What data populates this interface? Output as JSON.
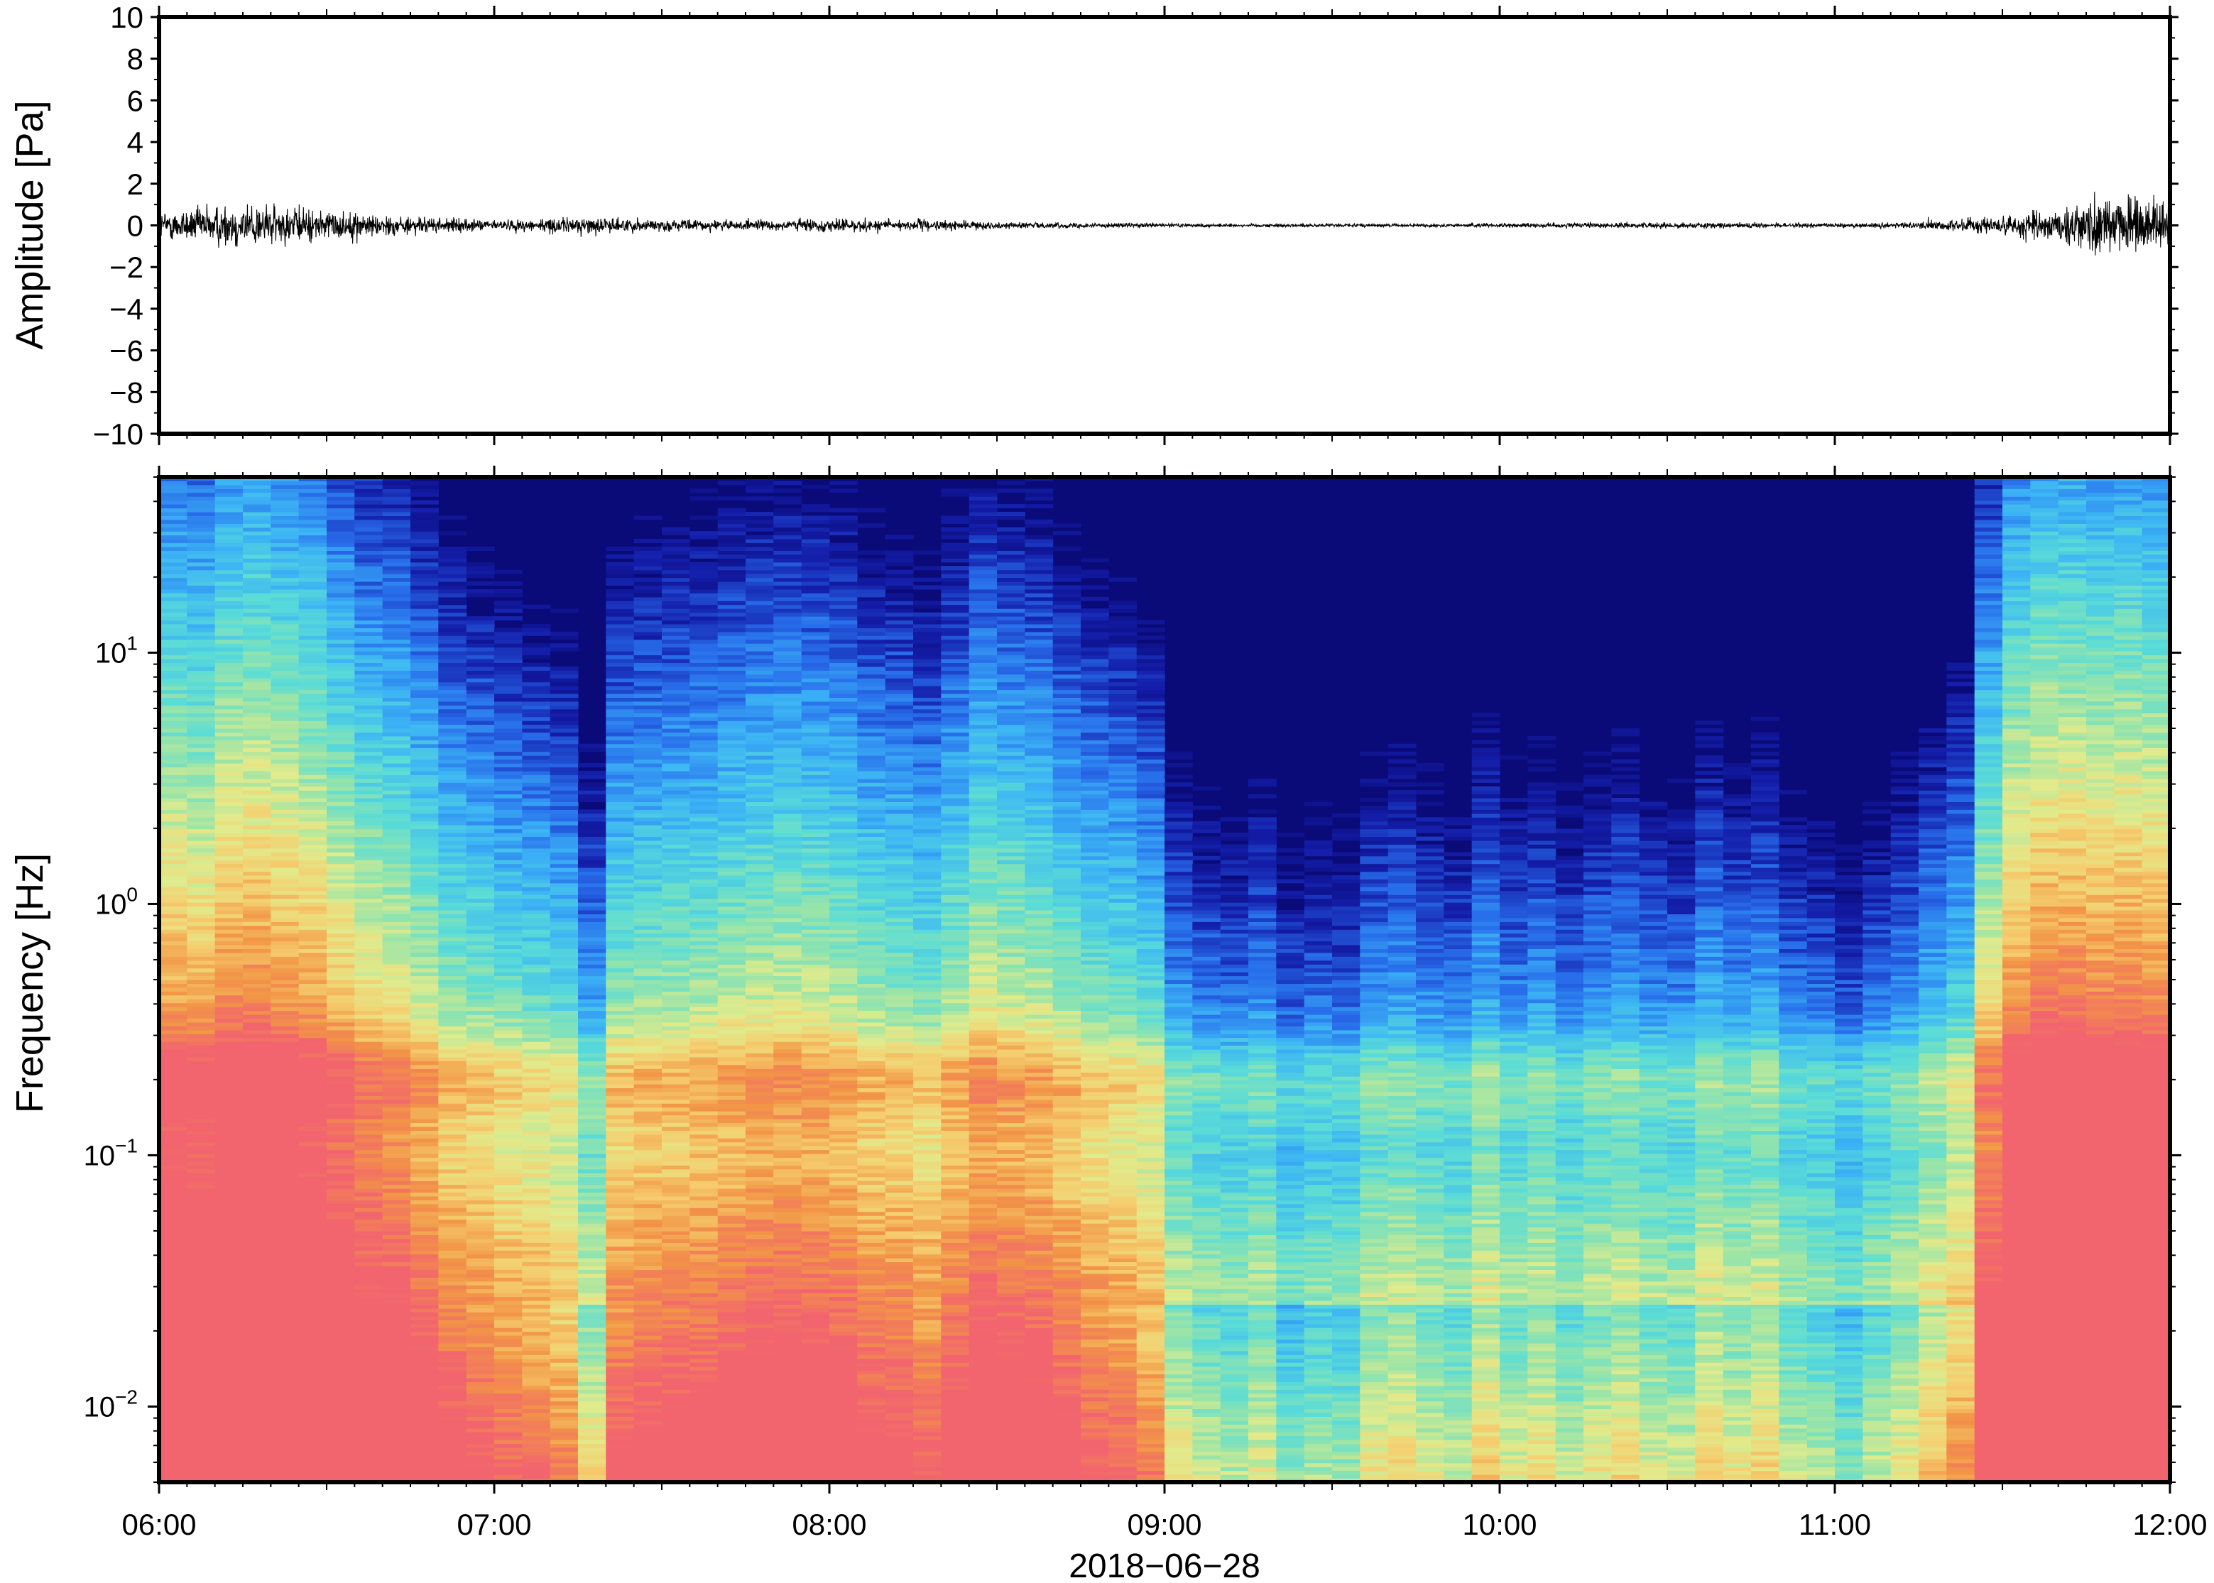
{
  "chart_data": [
    {
      "type": "line",
      "title": "",
      "xlabel": "",
      "ylabel": "Amplitude [Pa]",
      "ylim": [
        -10,
        10
      ],
      "yticks": [
        10,
        8,
        6,
        4,
        2,
        0,
        -2,
        -4,
        -6,
        -8,
        -10
      ],
      "ytick_labels": [
        "10",
        "8",
        "6",
        "4",
        "2",
        "0",
        "−2",
        "−4",
        "−6",
        "−8",
        "−10"
      ],
      "xlim": [
        "06:00",
        "12:00"
      ],
      "grid": false,
      "series": [
        {
          "color": "#000000",
          "x": [
            "06:00",
            "06:15",
            "06:30",
            "06:45",
            "07:00",
            "07:15",
            "07:30",
            "07:45",
            "08:00",
            "08:15",
            "08:30",
            "08:45",
            "09:00",
            "09:15",
            "09:30",
            "09:45",
            "10:00",
            "10:15",
            "10:30",
            "10:45",
            "11:00",
            "11:15",
            "11:30",
            "11:45",
            "12:00"
          ],
          "envelope": [
            0.8,
            1.4,
            0.9,
            0.5,
            0.3,
            0.5,
            0.35,
            0.3,
            0.4,
            0.35,
            0.2,
            0.15,
            0.12,
            0.1,
            0.1,
            0.1,
            0.12,
            0.15,
            0.18,
            0.15,
            0.12,
            0.2,
            0.6,
            1.5,
            1.8
          ],
          "peak_max": 2.4,
          "peak_min": -2.5
        }
      ]
    },
    {
      "type": "heatmap",
      "title": "",
      "xlabel": "2018−06−28",
      "ylabel": "Frequency [Hz]",
      "yscale": "log",
      "ylim": [
        0.005,
        50
      ],
      "ytick_labels": [
        {
          "base": "10",
          "exp": "1",
          "value": 10
        },
        {
          "base": "10",
          "exp": "0",
          "value": 1
        },
        {
          "base": "10",
          "exp": "−1",
          "value": 0.1
        },
        {
          "base": "10",
          "exp": "−2",
          "value": 0.01
        }
      ],
      "xticks": [
        "06:00",
        "07:00",
        "08:00",
        "09:00",
        "10:00",
        "11:00",
        "12:00"
      ],
      "colormap": "rainbow (dark blue = low power, red = high power)",
      "colors": {
        "low": "#0a0a78",
        "mid_low": "#2a6cf0",
        "mid": "#5adcd8",
        "mid_high": "#e8e88a",
        "high": "#f08c40",
        "max": "#f26a6a"
      },
      "time_columns": 72,
      "column_activity": [
        0.92,
        0.9,
        0.97,
        0.98,
        0.95,
        0.92,
        0.86,
        0.8,
        0.78,
        0.72,
        0.66,
        0.63,
        0.6,
        0.58,
        0.55,
        0.42,
        0.64,
        0.66,
        0.67,
        0.68,
        0.7,
        0.72,
        0.73,
        0.72,
        0.7,
        0.66,
        0.65,
        0.62,
        0.68,
        0.74,
        0.72,
        0.7,
        0.66,
        0.62,
        0.6,
        0.56,
        0.4,
        0.36,
        0.34,
        0.38,
        0.3,
        0.33,
        0.32,
        0.4,
        0.42,
        0.38,
        0.36,
        0.44,
        0.38,
        0.41,
        0.36,
        0.4,
        0.42,
        0.38,
        0.37,
        0.44,
        0.4,
        0.43,
        0.36,
        0.34,
        0.3,
        0.35,
        0.4,
        0.46,
        0.52,
        0.8,
        0.95,
        1.0,
        1.0,
        0.98,
        0.99,
        0.97
      ]
    }
  ]
}
